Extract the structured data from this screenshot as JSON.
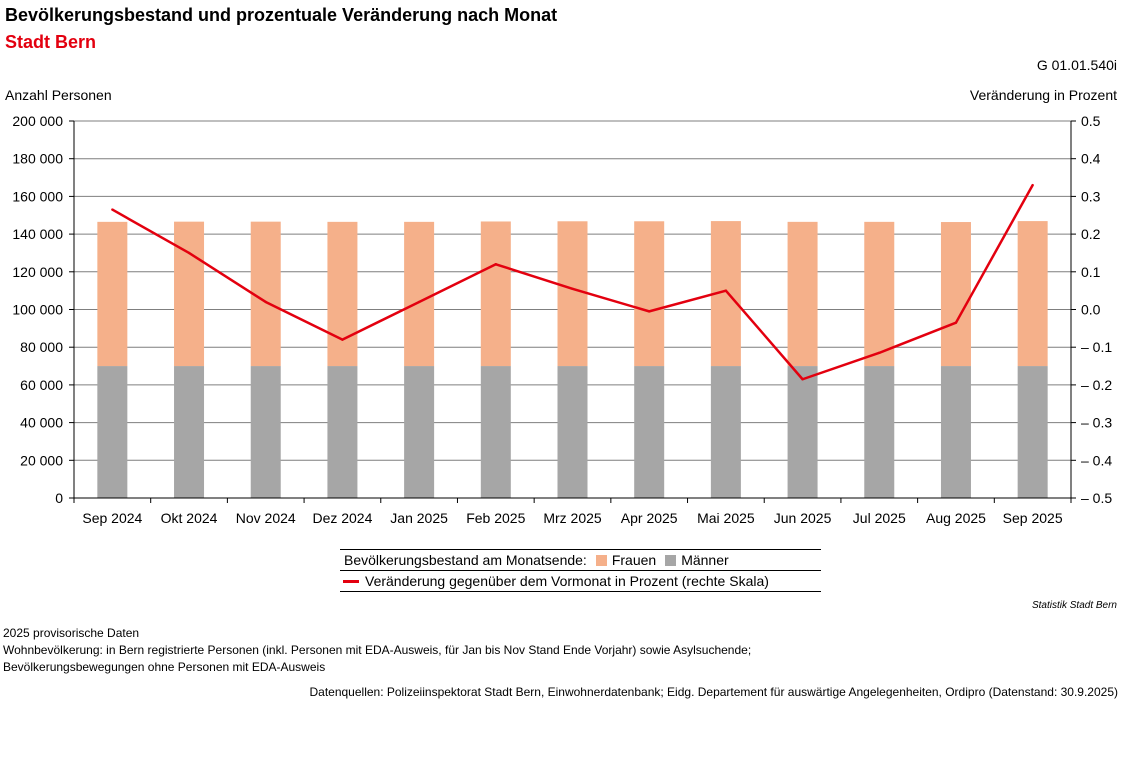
{
  "header": {
    "title": "Bevölkerungsbestand und prozentuale Veränderung nach Monat",
    "subtitle": "Stadt Bern",
    "code": "G 01.01.540i"
  },
  "chart_data": {
    "type": "bar",
    "stacked": true,
    "ylabel": "Anzahl Personen",
    "y2label": "Veränderung in Prozent",
    "ylim": [
      0,
      200000
    ],
    "y2lim": [
      -0.5,
      0.5
    ],
    "y_ticks": [
      "0",
      "20 000",
      "40 000",
      "60 000",
      "80 000",
      "100 000",
      "120 000",
      "140 000",
      "160 000",
      "180 000",
      "200 000"
    ],
    "y2_ticks": [
      "– 0.5",
      "– 0.4",
      "– 0.3",
      "– 0.2",
      "– 0.1",
      "0.0",
      "0.1",
      "0.2",
      "0.3",
      "0.4",
      "0.5"
    ],
    "categories": [
      "Sep 2024",
      "Okt 2024",
      "Nov 2024",
      "Dez 2024",
      "Jan 2025",
      "Feb 2025",
      "Mrz 2025",
      "Apr 2025",
      "Mai 2025",
      "Jun 2025",
      "Jul 2025",
      "Aug 2025",
      "Sep 2025"
    ],
    "series": [
      {
        "name": "Männer",
        "color": "#a6a6a6",
        "values": [
          70000,
          70000,
          70000,
          70000,
          70000,
          70000,
          70000,
          70000,
          70000,
          70000,
          70000,
          70000,
          70000
        ]
      },
      {
        "name": "Frauen",
        "color": "#f5b08a",
        "values": [
          76500,
          76600,
          76600,
          76500,
          76500,
          76700,
          76800,
          76800,
          76900,
          76500,
          76500,
          76400,
          76900
        ]
      },
      {
        "name": "Veränderung gegenüber dem Vormonat in Prozent (rechte Skala)",
        "type": "line",
        "axis": "right",
        "color": "#e3000f",
        "values": [
          0.265,
          0.15,
          0.02,
          -0.08,
          0.02,
          0.12,
          0.055,
          -0.005,
          0.05,
          -0.185,
          -0.115,
          -0.035,
          0.33
        ]
      }
    ],
    "grid": true
  },
  "legend": {
    "prefix": "Bevölkerungsbestand am Monatsende:",
    "frauen": "Frauen",
    "maenner": "Männer",
    "line": "Veränderung gegenüber dem Vormonat in Prozent (rechte Skala)"
  },
  "footer": {
    "source_credit": "Statistik Stadt Bern",
    "note1": "2025 provisorische Daten",
    "note2": "Wohnbevölkerung: in Bern registrierte Personen (inkl. Personen mit EDA-Ausweis, für Jan bis Nov Stand Ende Vorjahr) sowie Asylsuchende;",
    "note3": "Bevölkerungsbewegungen ohne Personen mit EDA-Ausweis",
    "datasource": "Datenquellen: Polizeiinspektorat Stadt Bern, Einwohnerdatenbank; Eidg. Departement für auswärtige Angelegenheiten, Ordipro (Datenstand: 30.9.2025)"
  }
}
